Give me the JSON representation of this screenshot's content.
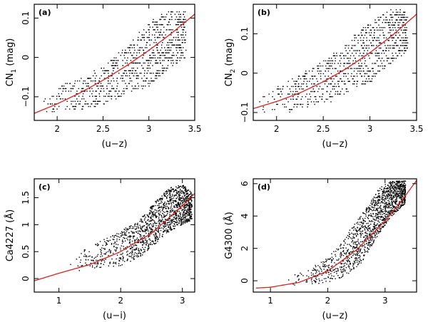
{
  "chart_data": [
    {
      "type": "scatter",
      "panel_label": "(a)",
      "xlabel": "(u−z)",
      "ylabel": "CN",
      "ylabel_sub": "1",
      "ylabel_suffix": " (mag)",
      "xlim": [
        1.75,
        3.5
      ],
      "ylim": [
        -0.16,
        0.135
      ],
      "xticks": [
        2,
        2.5,
        3,
        3.5
      ],
      "xtick_labels": [
        "2",
        "2.5",
        "3",
        "3.5"
      ],
      "yticks": [
        -0.1,
        0,
        0.1
      ],
      "ytick_labels": [
        "−0.1",
        "0",
        "0.1"
      ],
      "grid": false,
      "fit_color": "#e02020",
      "fit_curve": {
        "x": [
          1.75,
          2.0,
          2.25,
          2.5,
          2.75,
          3.0,
          3.25,
          3.5
        ],
        "y": [
          -0.142,
          -0.118,
          -0.09,
          -0.058,
          -0.022,
          0.018,
          0.062,
          0.11
        ]
      },
      "scatter_envelope": {
        "x": [
          1.8,
          2.0,
          2.25,
          2.5,
          2.75,
          3.0,
          3.2,
          3.4
        ],
        "y_low": [
          -0.14,
          -0.14,
          -0.13,
          -0.12,
          -0.09,
          -0.07,
          -0.03,
          0.0
        ],
        "y_high": [
          -0.08,
          -0.07,
          -0.05,
          -0.02,
          0.03,
          0.09,
          0.12,
          0.12
        ]
      }
    },
    {
      "type": "scatter",
      "panel_label": "(b)",
      "xlabel": "(u−z)",
      "ylabel": "CN",
      "ylabel_sub": "2",
      "ylabel_suffix": " (mag)",
      "xlim": [
        1.75,
        3.5
      ],
      "ylim": [
        -0.12,
        0.175
      ],
      "xticks": [
        2,
        2.5,
        3,
        3.5
      ],
      "xtick_labels": [
        "2",
        "2.5",
        "3",
        "3.5"
      ],
      "yticks": [
        -0.1,
        0,
        0.1
      ],
      "ytick_labels": [
        "−0.1",
        "0",
        "0.1"
      ],
      "grid": false,
      "fit_color": "#e02020",
      "fit_curve": {
        "x": [
          1.75,
          2.0,
          2.25,
          2.5,
          2.75,
          3.0,
          3.25,
          3.5
        ],
        "y": [
          -0.09,
          -0.072,
          -0.05,
          -0.022,
          0.012,
          0.052,
          0.098,
          0.15
        ]
      },
      "scatter_envelope": {
        "x": [
          1.8,
          2.0,
          2.25,
          2.5,
          2.75,
          3.0,
          3.2,
          3.4
        ],
        "y_low": [
          -0.1,
          -0.1,
          -0.09,
          -0.08,
          -0.05,
          -0.02,
          0.02,
          0.06
        ],
        "y_high": [
          -0.04,
          -0.03,
          0.0,
          0.03,
          0.08,
          0.13,
          0.16,
          0.16
        ]
      }
    },
    {
      "type": "scatter",
      "panel_label": "(c)",
      "xlabel": "(u−i)",
      "ylabel": "Ca4227 (Å)",
      "xlim": [
        0.6,
        3.2
      ],
      "ylim": [
        -0.25,
        1.85
      ],
      "xticks": [
        1,
        2,
        3
      ],
      "xtick_labels": [
        "1",
        "2",
        "3"
      ],
      "yticks": [
        0,
        0.5,
        1,
        1.5
      ],
      "ytick_labels": [
        "0",
        "0.5",
        "1",
        "1.5"
      ],
      "grid": false,
      "fit_color": "#e02020",
      "fit_curve": {
        "x": [
          0.6,
          1.0,
          1.5,
          2.0,
          2.5,
          3.0,
          3.2
        ],
        "y": [
          -0.04,
          0.1,
          0.26,
          0.5,
          0.84,
          1.35,
          1.58
        ]
      },
      "scatter_envelope": {
        "x": [
          1.0,
          1.5,
          2.0,
          2.3,
          2.6,
          2.8,
          3.0,
          3.15
        ],
        "y_low": [
          0.0,
          0.2,
          0.25,
          0.4,
          0.7,
          0.9,
          1.0,
          1.1
        ],
        "y_high": [
          0.4,
          0.6,
          0.9,
          1.1,
          1.5,
          1.7,
          1.75,
          1.6
        ]
      }
    },
    {
      "type": "scatter",
      "panel_label": "(d)",
      "xlabel": "(u−z)",
      "ylabel": "G4300 (Å)",
      "xlim": [
        0.7,
        3.55
      ],
      "ylim": [
        -0.7,
        6.3
      ],
      "xticks": [
        1,
        2,
        3
      ],
      "xtick_labels": [
        "1",
        "2",
        "3"
      ],
      "yticks": [
        0,
        2,
        4,
        6
      ],
      "ytick_labels": [
        "0",
        "2",
        "4",
        "6"
      ],
      "grid": false,
      "fit_color": "#e02020",
      "fit_curve": {
        "x": [
          0.75,
          1.0,
          1.5,
          2.0,
          2.5,
          3.0,
          3.3,
          3.55
        ],
        "y": [
          -0.45,
          -0.4,
          -0.1,
          0.6,
          1.9,
          3.7,
          5.0,
          6.2
        ]
      },
      "scatter_envelope": {
        "x": [
          1.2,
          1.6,
          2.0,
          2.3,
          2.6,
          2.9,
          3.1,
          3.35
        ],
        "y_low": [
          -0.3,
          -0.2,
          -0.1,
          0.3,
          1.2,
          3.0,
          4.0,
          4.8
        ],
        "y_high": [
          0.2,
          0.6,
          1.5,
          2.8,
          4.2,
          5.8,
          6.2,
          6.2
        ]
      }
    }
  ]
}
